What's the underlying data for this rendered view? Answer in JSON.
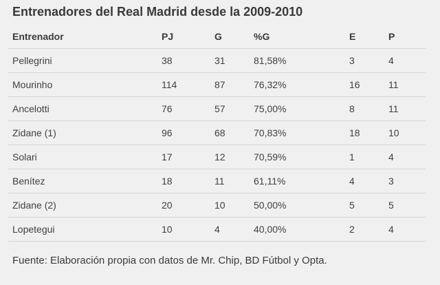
{
  "title": "Entrenadores del Real Madrid desde la 2009-2010",
  "table": {
    "headers": [
      "Entrenador",
      "PJ",
      "G",
      "%G",
      "E",
      "P"
    ],
    "rows": [
      [
        "Pellegrini",
        "38",
        "31",
        "81,58%",
        "3",
        "4"
      ],
      [
        "Mourinho",
        "114",
        "87",
        "76,32%",
        "16",
        "11"
      ],
      [
        "Ancelotti",
        "76",
        "57",
        "75,00%",
        "8",
        "11"
      ],
      [
        "Zidane (1)",
        "96",
        "68",
        "70,83%",
        "18",
        "10"
      ],
      [
        "Solari",
        "17",
        "12",
        "70,59%",
        "1",
        "4"
      ],
      [
        "Benítez",
        "18",
        "11",
        "61,11%",
        "4",
        "3"
      ],
      [
        "Zidane (2)",
        "20",
        "10",
        "50,00%",
        "5",
        "5"
      ],
      [
        "Lopetegui",
        "10",
        "4",
        "40,00%",
        "2",
        "4"
      ]
    ]
  },
  "source": "Fuente: Elaboración propia con datos de Mr. Chip, BD Fútbol y Opta."
}
